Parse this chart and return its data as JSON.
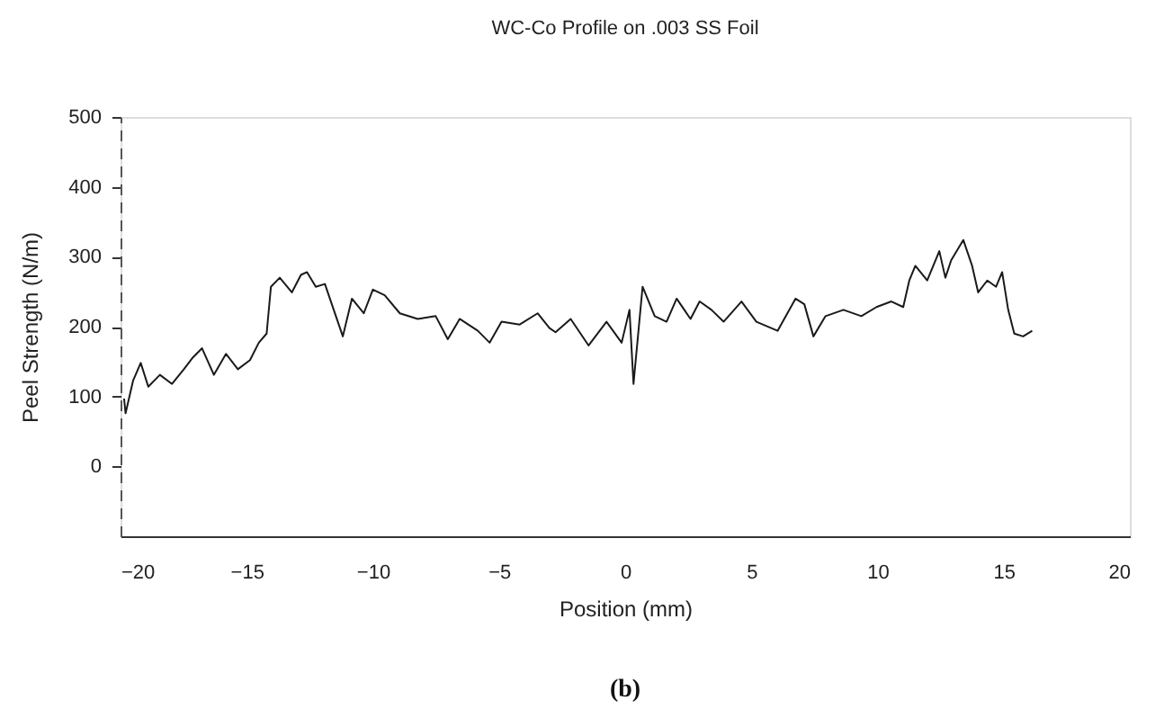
{
  "chart_data": {
    "type": "line",
    "title": "WC-Co Profile on .003 SS Foil",
    "xlabel": "Position   (mm)",
    "ylabel": "Peel Strength   (N/m)",
    "annotations": [
      "(b)"
    ],
    "x": [
      -19.86,
      -19.8,
      -19.5,
      -19.2,
      -18.9,
      -18.44,
      -17.96,
      -17.49,
      -17.13,
      -16.77,
      -16.3,
      -15.82,
      -15.35,
      -14.87,
      -14.52,
      -14.21,
      -14.04,
      -13.69,
      -13.21,
      -12.85,
      -12.61,
      -12.26,
      -11.9,
      -11.55,
      -11.19,
      -10.83,
      -10.36,
      -10.0,
      -9.53,
      -8.93,
      -8.22,
      -7.51,
      -7.03,
      -6.56,
      -5.84,
      -5.37,
      -4.9,
      -4.18,
      -3.47,
      -3.0,
      -2.76,
      -2.16,
      -1.45,
      -0.74,
      -0.14,
      0.17,
      0.33,
      0.69,
      1.17,
      1.64,
      2.04,
      2.59,
      2.95,
      3.42,
      3.9,
      4.61,
      5.2,
      6.04,
      6.75,
      7.1,
      7.46,
      7.94,
      8.65,
      9.36,
      9.96,
      10.55,
      11.02,
      11.26,
      11.5,
      11.97,
      12.45,
      12.69,
      12.92,
      13.4,
      13.75,
      13.99,
      14.35,
      14.7,
      14.94,
      15.18,
      15.42,
      15.77,
      16.13
    ],
    "series": [
      {
        "color": "#1a1a1a",
        "values": [
          97,
          76,
          123,
          148,
          114,
          131,
          118,
          139,
          156,
          169,
          131,
          161,
          139,
          152,
          177,
          190,
          257,
          270,
          249,
          274,
          278,
          257,
          261,
          224,
          186,
          240,
          219,
          253,
          245,
          219,
          211,
          215,
          182,
          211,
          194,
          177,
          207,
          203,
          219,
          198,
          192,
          211,
          173,
          207,
          177,
          224,
          118,
          257,
          215,
          207,
          240,
          211,
          236,
          224,
          207,
          236,
          207,
          194,
          240,
          232,
          186,
          215,
          224,
          215,
          228,
          236,
          228,
          266,
          287,
          266,
          308,
          270,
          295,
          324,
          287,
          249,
          266,
          257,
          278,
          224,
          190,
          186,
          194
        ]
      }
    ],
    "xlim": [
      -20,
      20
    ],
    "xticks": [
      -20,
      -15,
      -10,
      -5,
      0,
      5,
      10,
      15,
      20
    ],
    "ylim": [
      -100,
      500
    ],
    "yticks": [
      0,
      100,
      200,
      300,
      400,
      500
    ],
    "grid": false,
    "marker": "none",
    "line_style": "solid"
  }
}
